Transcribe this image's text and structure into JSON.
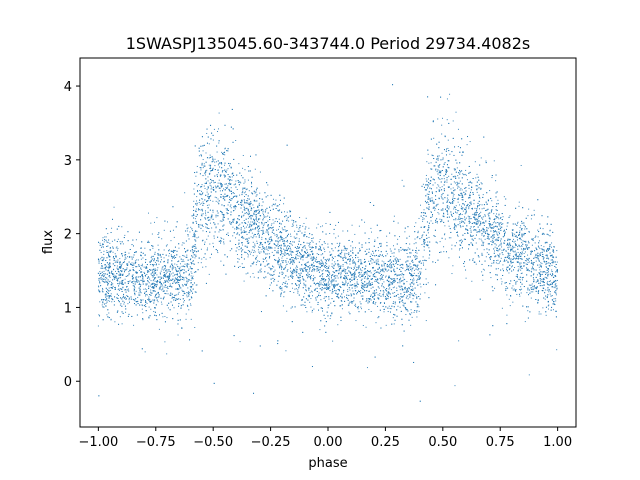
{
  "chart_data": {
    "type": "scatter",
    "title": "1SWASPJ135045.60-343744.0 Period 29734.4082s",
    "xlabel": "phase",
    "ylabel": "flux",
    "xlim": [
      -1.08,
      1.08
    ],
    "ylim": [
      -0.62,
      4.38
    ],
    "xticks": [
      -1.0,
      -0.75,
      -0.5,
      -0.25,
      0.0,
      0.25,
      0.5,
      0.75,
      1.0
    ],
    "xtick_labels": [
      "−1.00",
      "−0.75",
      "−0.50",
      "−0.25",
      "0.00",
      "0.25",
      "0.50",
      "0.75",
      "1.00"
    ],
    "yticks": [
      0,
      1,
      2,
      3,
      4
    ],
    "ytick_labels": [
      "0",
      "1",
      "2",
      "3",
      "4"
    ],
    "grid": false,
    "marker_color": "#1f77b4",
    "profile": {
      "phase": [
        0.0,
        0.05,
        0.1,
        0.15,
        0.2,
        0.25,
        0.3,
        0.35,
        0.4,
        0.42,
        0.45,
        0.5,
        0.55,
        0.6,
        0.65,
        0.7,
        0.75,
        0.8,
        0.85,
        0.9,
        0.95,
        1.0
      ],
      "flux": [
        1.45,
        1.43,
        1.42,
        1.4,
        1.4,
        1.4,
        1.4,
        1.42,
        1.48,
        2.0,
        2.5,
        2.62,
        2.52,
        2.35,
        2.18,
        2.02,
        1.88,
        1.75,
        1.64,
        1.55,
        1.49,
        1.45
      ],
      "scatter": [
        0.28,
        0.26,
        0.25,
        0.25,
        0.25,
        0.26,
        0.27,
        0.28,
        0.3,
        0.45,
        0.45,
        0.42,
        0.4,
        0.36,
        0.33,
        0.31,
        0.3,
        0.29,
        0.28,
        0.28,
        0.28,
        0.28
      ]
    },
    "x_range": [
      -1.0,
      1.0
    ],
    "y_range": [
      -0.4,
      4.2
    ]
  }
}
